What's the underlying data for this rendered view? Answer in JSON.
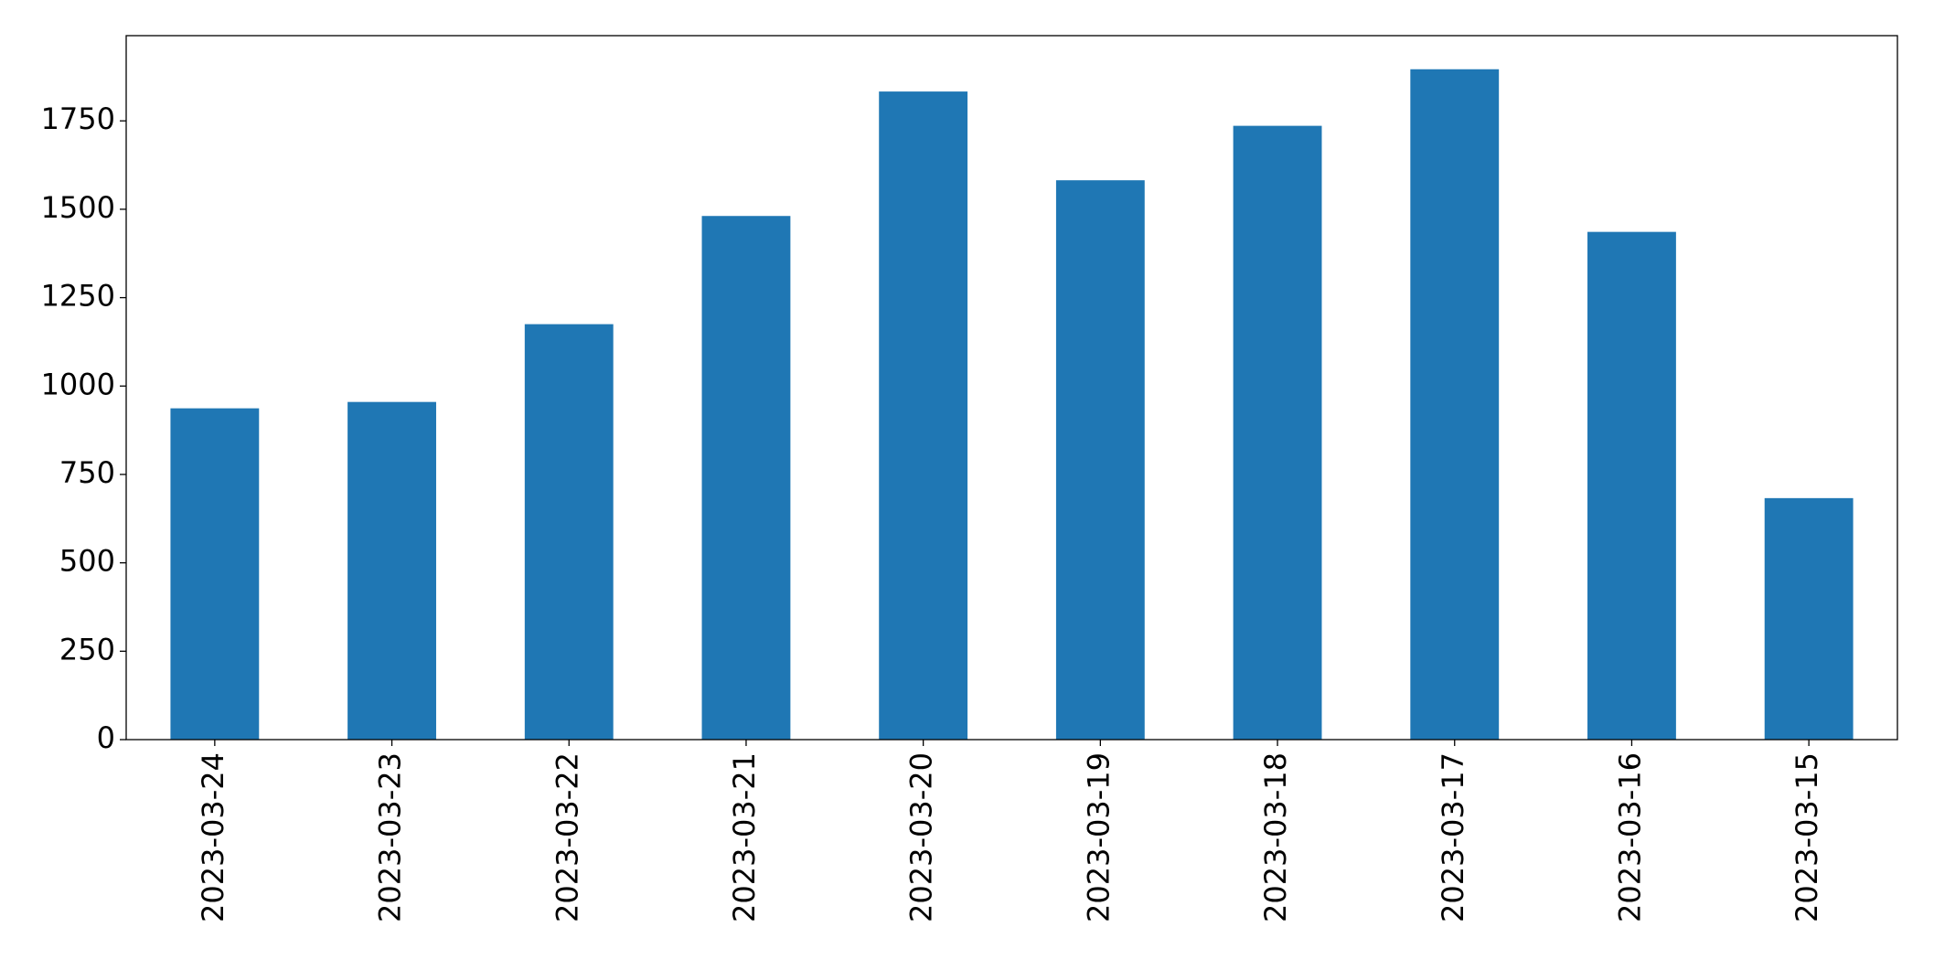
{
  "chart_data": {
    "type": "bar",
    "categories": [
      "2023-03-24",
      "2023-03-23",
      "2023-03-22",
      "2023-03-21",
      "2023-03-20",
      "2023-03-19",
      "2023-03-18",
      "2023-03-17",
      "2023-03-16",
      "2023-03-15"
    ],
    "values": [
      937,
      955,
      1175,
      1481,
      1833,
      1582,
      1736,
      1896,
      1436,
      683
    ],
    "color": "#1f77b4",
    "ylim": [
      0,
      1991
    ],
    "yticks": [
      0,
      250,
      500,
      750,
      1000,
      1250,
      1500,
      1750
    ],
    "grid": false
  }
}
